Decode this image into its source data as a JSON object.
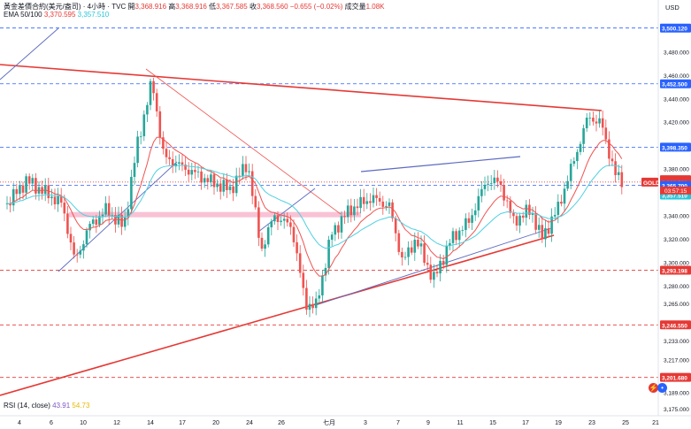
{
  "header": {
    "symbol": "黃金差價合約(美元/盎司) · 4小時 · TVC",
    "open_label": "開",
    "open": "3,368.916",
    "high_label": "高",
    "high": "3,368.916",
    "low_label": "低",
    "low": "3,367.585",
    "close_label": "收",
    "close": "3,368.560",
    "change": "−0.655 (−0.02%)",
    "volume_label": "成交量",
    "volume": "1.08K",
    "ema_label": "EMA 50/100",
    "ema50": "3,370.595",
    "ema100": "3,357.510",
    "rsi_label": "RSI (14, close)",
    "rsi1": "43.91",
    "rsi2": "54.73",
    "currency": "USD",
    "ticker_tag": "GOLD",
    "countdown": "03:57:15"
  },
  "chart_data": {
    "type": "candlestick",
    "y_range": [
      3162,
      3510
    ],
    "y_ticks": [
      "3,480.000",
      "3,460.000",
      "3,440.000",
      "3,420.000",
      "3,380.000",
      "3,340.000",
      "3,320.000",
      "3,300.000",
      "3,280.000",
      "3,265.000",
      "3,233.000",
      "3,217.000",
      "3,189.000",
      "3,175.000"
    ],
    "x_ticks": [
      "4",
      "6",
      "10",
      "12",
      "14",
      "17",
      "20",
      "24",
      "26",
      "七月",
      "3",
      "7",
      "9",
      "11",
      "15",
      "17",
      "19",
      "23",
      "25",
      "21"
    ],
    "price_labels": [
      {
        "value": "3,500.120",
        "price": 3500.12,
        "color": "#2962ff",
        "style": "dash"
      },
      {
        "value": "3,452.500",
        "price": 3452.5,
        "color": "#2962ff",
        "style": "dash"
      },
      {
        "value": "3,398.350",
        "price": 3398.35,
        "color": "#2962ff",
        "style": "dash"
      },
      {
        "value": "3,370.595",
        "price": 3370.6,
        "color": "#e53935",
        "style": "none"
      },
      {
        "value": "3,368.560",
        "price": 3368.56,
        "color": "#e53935",
        "style": "dot"
      },
      {
        "value": "3,365.700",
        "price": 3365.7,
        "color": "#2962ff",
        "style": "dash"
      },
      {
        "value": "3,357.510",
        "price": 3357.51,
        "color": "#26c6da",
        "style": "none"
      },
      {
        "value": "3,293.198",
        "price": 3293.2,
        "color": "#e53935",
        "style": "dash"
      },
      {
        "value": "3,246.550",
        "price": 3246.55,
        "color": "#e53935",
        "style": "dash"
      },
      {
        "value": "3,201.680",
        "price": 3201.68,
        "color": "#e53935",
        "style": "dash"
      }
    ],
    "colors": {
      "up": "#26a69a",
      "down": "#ef5350",
      "ema50": "#ef5350",
      "ema100": "#4dd0e1",
      "zone": "#f8bbd0"
    }
  }
}
